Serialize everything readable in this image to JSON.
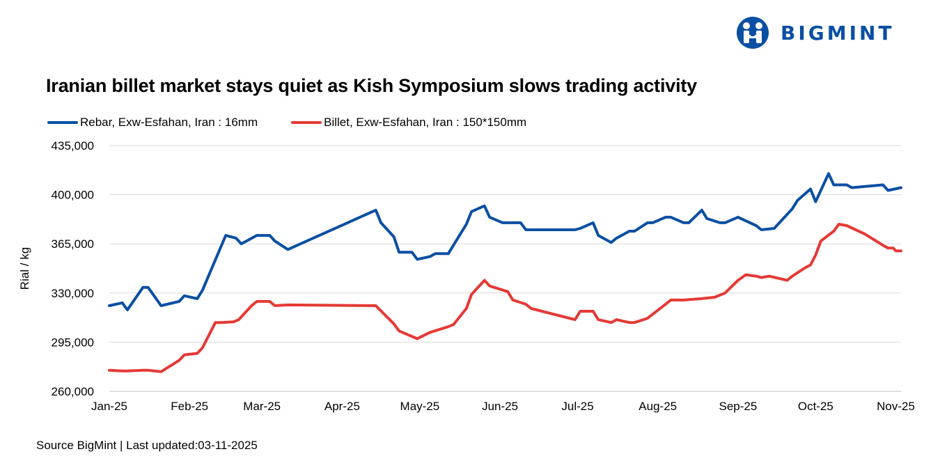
{
  "brand": {
    "name": "BIGMINT",
    "logo_icon": "bigmint-logo-icon",
    "color": "#0a4fa3"
  },
  "title": "Iranian billet market stays quiet as Kish Symposium slows trading activity",
  "source": "Source BigMint | Last updated:03-11-2025",
  "chart_data": {
    "type": "line",
    "title": "Iranian billet market stays quiet as Kish Symposium slows trading activity",
    "xlabel": "",
    "ylabel": "Rial / kg",
    "ylim": [
      260000,
      435000
    ],
    "yticks": [
      260000,
      295000,
      330000,
      365000,
      400000,
      435000
    ],
    "ytick_labels": [
      "260,000",
      "295,000",
      "330,000",
      "365,000",
      "400,000",
      "435,000"
    ],
    "xlim": [
      "2025-01-01",
      "2025-11-03"
    ],
    "xticks": [
      "2025-01-01",
      "2025-02-01",
      "2025-03-01",
      "2025-04-01",
      "2025-05-01",
      "2025-06-01",
      "2025-07-01",
      "2025-08-01",
      "2025-09-01",
      "2025-10-01",
      "2025-11-01"
    ],
    "xtick_labels": [
      "Jan-25",
      "Feb-25",
      "Mar-25",
      "Apr-25",
      "May-25",
      "Jun-25",
      "Jul-25",
      "Aug-25",
      "Sep-25",
      "Oct-25",
      "Nov-25"
    ],
    "grid": "horizontal",
    "legend": "top-left",
    "series": [
      {
        "name": "Rebar, Exw-Esfahan, Iran : 16mm",
        "color": "#0a4fa3",
        "points": [
          [
            "2025-01-01",
            321000
          ],
          [
            "2025-01-06",
            323000
          ],
          [
            "2025-01-08",
            318000
          ],
          [
            "2025-01-14",
            334000
          ],
          [
            "2025-01-16",
            334000
          ],
          [
            "2025-01-21",
            321000
          ],
          [
            "2025-01-28",
            324000
          ],
          [
            "2025-01-30",
            328000
          ],
          [
            "2025-02-04",
            326000
          ],
          [
            "2025-02-06",
            332000
          ],
          [
            "2025-02-15",
            371000
          ],
          [
            "2025-02-19",
            369000
          ],
          [
            "2025-02-21",
            365000
          ],
          [
            "2025-02-27",
            371000
          ],
          [
            "2025-03-04",
            371000
          ],
          [
            "2025-03-06",
            367000
          ],
          [
            "2025-03-11",
            361000
          ],
          [
            "2025-04-14",
            389000
          ],
          [
            "2025-04-16",
            380000
          ],
          [
            "2025-04-21",
            370000
          ],
          [
            "2025-04-23",
            359000
          ],
          [
            "2025-04-28",
            359000
          ],
          [
            "2025-04-30",
            354000
          ],
          [
            "2025-05-05",
            356000
          ],
          [
            "2025-05-07",
            358000
          ],
          [
            "2025-05-12",
            358000
          ],
          [
            "2025-05-19",
            379000
          ],
          [
            "2025-05-21",
            388000
          ],
          [
            "2025-05-26",
            392000
          ],
          [
            "2025-05-28",
            384000
          ],
          [
            "2025-06-02",
            380000
          ],
          [
            "2025-06-09",
            380000
          ],
          [
            "2025-06-11",
            375000
          ],
          [
            "2025-06-30",
            375000
          ],
          [
            "2025-07-02",
            376000
          ],
          [
            "2025-07-07",
            380000
          ],
          [
            "2025-07-09",
            371000
          ],
          [
            "2025-07-14",
            366000
          ],
          [
            "2025-07-16",
            369000
          ],
          [
            "2025-07-21",
            374000
          ],
          [
            "2025-07-23",
            374000
          ],
          [
            "2025-07-28",
            380000
          ],
          [
            "2025-07-30",
            380000
          ],
          [
            "2025-08-04",
            384000
          ],
          [
            "2025-08-06",
            384000
          ],
          [
            "2025-08-11",
            380000
          ],
          [
            "2025-08-13",
            380000
          ],
          [
            "2025-08-18",
            389000
          ],
          [
            "2025-08-20",
            383000
          ],
          [
            "2025-08-25",
            380000
          ],
          [
            "2025-08-27",
            380000
          ],
          [
            "2025-09-01",
            384000
          ],
          [
            "2025-09-08",
            378000
          ],
          [
            "2025-09-10",
            375000
          ],
          [
            "2025-09-15",
            376000
          ],
          [
            "2025-09-22",
            390000
          ],
          [
            "2025-09-24",
            396000
          ],
          [
            "2025-09-29",
            404000
          ],
          [
            "2025-10-01",
            395000
          ],
          [
            "2025-10-06",
            415000
          ],
          [
            "2025-10-08",
            407000
          ],
          [
            "2025-10-13",
            407000
          ],
          [
            "2025-10-15",
            405000
          ],
          [
            "2025-10-27",
            407000
          ],
          [
            "2025-10-29",
            403000
          ],
          [
            "2025-11-03",
            405000
          ]
        ]
      },
      {
        "name": "Billet, Exw-Esfahan, Iran : 150*150mm",
        "color": "#e53935",
        "points": [
          [
            "2025-01-01",
            275000
          ],
          [
            "2025-01-06",
            274500
          ],
          [
            "2025-01-08",
            274500
          ],
          [
            "2025-01-14",
            275000
          ],
          [
            "2025-01-16",
            275000
          ],
          [
            "2025-01-21",
            274000
          ],
          [
            "2025-01-28",
            282000
          ],
          [
            "2025-01-30",
            286000
          ],
          [
            "2025-02-04",
            287000
          ],
          [
            "2025-02-06",
            291000
          ],
          [
            "2025-02-11",
            309000
          ],
          [
            "2025-02-13",
            309000
          ],
          [
            "2025-02-18",
            309500
          ],
          [
            "2025-02-20",
            311000
          ],
          [
            "2025-02-25",
            321000
          ],
          [
            "2025-02-27",
            324000
          ],
          [
            "2025-03-04",
            324000
          ],
          [
            "2025-03-06",
            321000
          ],
          [
            "2025-03-11",
            321500
          ],
          [
            "2025-04-14",
            321000
          ],
          [
            "2025-04-21",
            308000
          ],
          [
            "2025-04-23",
            303000
          ],
          [
            "2025-04-30",
            297500
          ],
          [
            "2025-05-05",
            302000
          ],
          [
            "2025-05-12",
            306000
          ],
          [
            "2025-05-14",
            307500
          ],
          [
            "2025-05-19",
            319000
          ],
          [
            "2025-05-21",
            329000
          ],
          [
            "2025-05-26",
            339000
          ],
          [
            "2025-05-28",
            335000
          ],
          [
            "2025-06-04",
            331000
          ],
          [
            "2025-06-06",
            325000
          ],
          [
            "2025-06-11",
            322000
          ],
          [
            "2025-06-13",
            319000
          ],
          [
            "2025-06-30",
            311000
          ],
          [
            "2025-07-02",
            317000
          ],
          [
            "2025-07-07",
            317000
          ],
          [
            "2025-07-09",
            311000
          ],
          [
            "2025-07-14",
            309000
          ],
          [
            "2025-07-16",
            311000
          ],
          [
            "2025-07-21",
            309000
          ],
          [
            "2025-07-23",
            309000
          ],
          [
            "2025-07-28",
            312000
          ],
          [
            "2025-08-04",
            322000
          ],
          [
            "2025-08-06",
            325000
          ],
          [
            "2025-08-11",
            325000
          ],
          [
            "2025-08-18",
            326000
          ],
          [
            "2025-08-23",
            327000
          ],
          [
            "2025-08-27",
            330000
          ],
          [
            "2025-09-01",
            339000
          ],
          [
            "2025-09-04",
            343000
          ],
          [
            "2025-09-08",
            342000
          ],
          [
            "2025-09-10",
            341000
          ],
          [
            "2025-09-13",
            342000
          ],
          [
            "2025-09-20",
            339000
          ],
          [
            "2025-09-22",
            342000
          ],
          [
            "2025-09-27",
            348000
          ],
          [
            "2025-09-29",
            350000
          ],
          [
            "2025-10-01",
            357000
          ],
          [
            "2025-10-03",
            367000
          ],
          [
            "2025-10-08",
            374000
          ],
          [
            "2025-10-10",
            379000
          ],
          [
            "2025-10-13",
            378000
          ],
          [
            "2025-10-20",
            372000
          ],
          [
            "2025-10-27",
            364000
          ],
          [
            "2025-10-29",
            362000
          ],
          [
            "2025-10-31",
            362000
          ],
          [
            "2025-11-01",
            360000
          ],
          [
            "2025-11-03",
            360000
          ]
        ]
      }
    ]
  }
}
